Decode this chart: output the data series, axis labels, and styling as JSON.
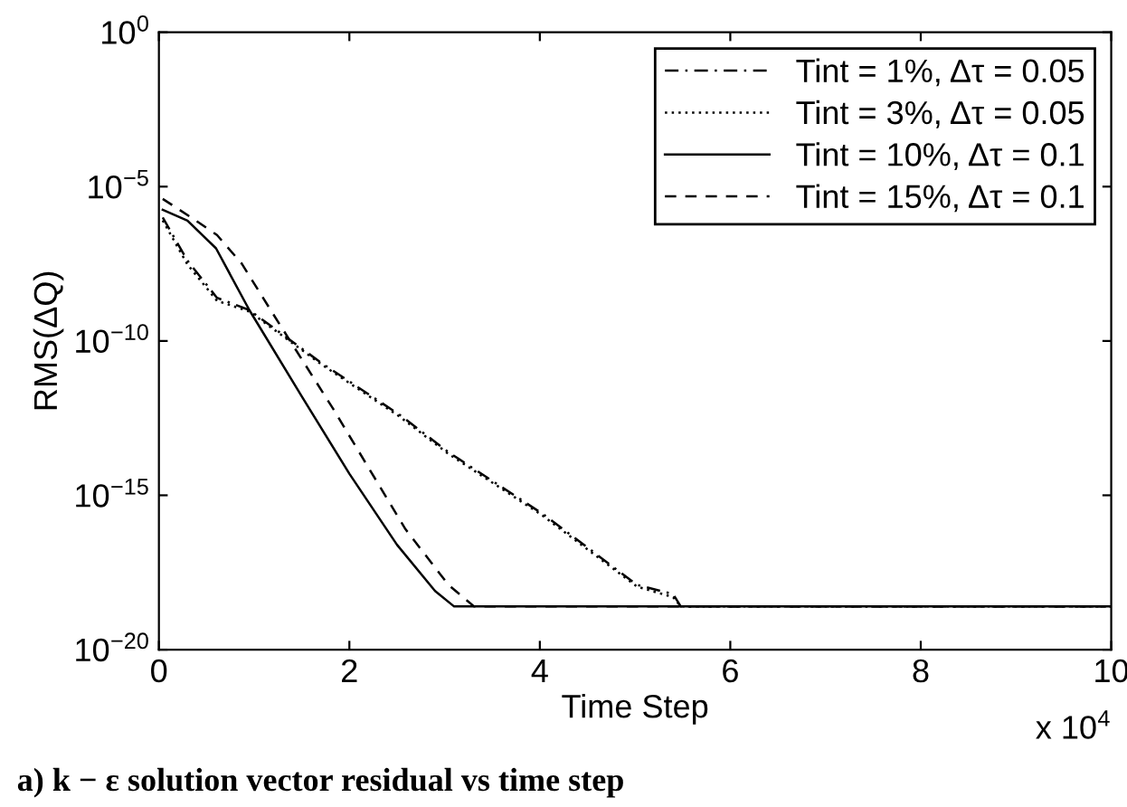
{
  "chart_data": {
    "type": "line",
    "xlabel": "Time Step",
    "ylabel": "RMS(ΔQ)",
    "log": "y",
    "xlim": [
      0,
      10
    ],
    "xticks": [
      0,
      2,
      4,
      6,
      8,
      10
    ],
    "ylim": [
      1e-20,
      1
    ],
    "yticks": [
      {
        "value": 1e-20,
        "label": "10$^{−20}$"
      },
      {
        "value": 1e-15,
        "label": "10$^{−15}$"
      },
      {
        "value": 1e-10,
        "label": "10$^{−10}$"
      },
      {
        "value": 1e-05,
        "label": "10$^{−5}$"
      },
      {
        "value": 1,
        "label": "10$^{0}$"
      }
    ],
    "grid": false,
    "legend": "top right",
    "marker": "none",
    "series": [
      {
        "name": "Tint = 1%, Δτ = 0.05",
        "color": "#000000",
        "line_style": "dashdot",
        "x": [
          0.04,
          0.3,
          0.61,
          0.95,
          1.7,
          2.53,
          3.04,
          4.03,
          5.02,
          5.4,
          5.48,
          10
        ],
        "values": [
          1e-06,
          4e-08,
          2.5e-09,
          1e-09,
          2e-11,
          4e-13,
          2.5e-14,
          2.5e-16,
          1.26e-18,
          6.3e-19,
          2.5e-19,
          2.5e-19
        ]
      },
      {
        "name": "Tint = 3%, Δτ = 0.05",
        "color": "#000000",
        "line_style": "dotted",
        "x": [
          0.04,
          0.3,
          0.61,
          0.95,
          1.7,
          2.53,
          3.04,
          4.03,
          5.02,
          5.4,
          5.48,
          10
        ],
        "values": [
          8e-07,
          3e-08,
          2e-09,
          9e-10,
          1.8e-11,
          3.5e-13,
          2.2e-14,
          2.2e-16,
          1.1e-18,
          5e-19,
          2.5e-19,
          2.5e-19
        ]
      },
      {
        "name": "Tint = 10%, Δτ = 0.1",
        "color": "#000000",
        "line_style": "solid",
        "x": [
          0.04,
          0.3,
          0.6,
          0.95,
          1.5,
          2.0,
          2.5,
          2.9,
          3.1,
          10
        ],
        "values": [
          1.78e-06,
          7.9e-07,
          1e-07,
          1e-09,
          1.6e-12,
          5e-15,
          2.5e-17,
          7.9e-19,
          2.5e-19,
          2.5e-19
        ]
      },
      {
        "name": "Tint = 15%, Δτ = 0.1",
        "color": "#000000",
        "line_style": "dashed",
        "x": [
          0.04,
          0.34,
          0.61,
          0.87,
          1.18,
          1.83,
          2.59,
          3.04,
          3.31,
          10
        ],
        "values": [
          4e-06,
          1e-06,
          2.7e-07,
          3.2e-08,
          9.3e-10,
          6.3e-13,
          7.9e-17,
          1.26e-18,
          2.5e-19,
          2.5e-19
        ]
      }
    ],
    "annotations": [
      "x 10$^{4}$",
      "a) k − ε solution vector residual vs time step"
    ]
  }
}
